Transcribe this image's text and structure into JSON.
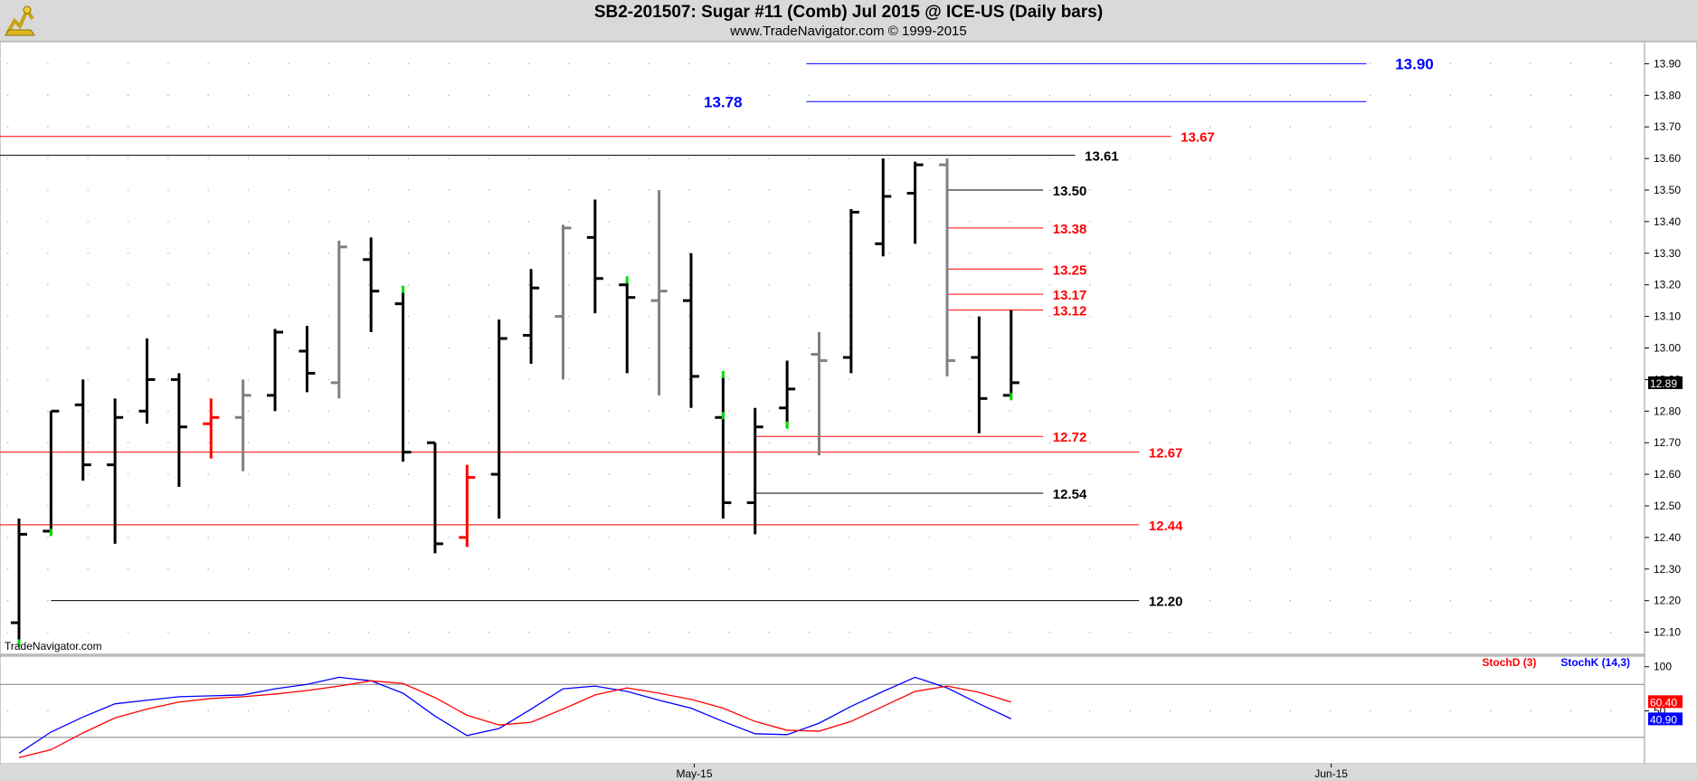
{
  "header": {
    "title": "SB2-201507:  Sugar #11 (Comb) Jul 2015 @ ICE-US  (Daily bars)",
    "subtitle": "www.TradeNavigator.com © 1999-2015"
  },
  "watermark": "TradeNavigator.com",
  "chart_data": [
    {
      "type": "ohlc",
      "ylim": [
        12.03,
        13.97
      ],
      "yticks": [
        "12.10",
        "12.20",
        "12.30",
        "12.40",
        "12.50",
        "12.60",
        "12.70",
        "12.80",
        "12.90",
        "13.00",
        "13.10",
        "13.20",
        "13.30",
        "13.40",
        "13.50",
        "13.60",
        "13.70",
        "13.80",
        "13.90"
      ],
      "x_labels": [
        {
          "label": "May-15",
          "bar": 21.1
        },
        {
          "label": "Jun-15",
          "bar": 41.0
        }
      ],
      "last_price": "12.89",
      "grid": true,
      "bars": [
        {
          "o": 12.13,
          "h": 12.46,
          "l": 12.06,
          "c": 12.41,
          "color": "black"
        },
        {
          "o": 12.42,
          "h": 12.8,
          "l": 12.41,
          "c": 12.8,
          "color": "black"
        },
        {
          "o": 12.82,
          "h": 12.9,
          "l": 12.58,
          "c": 12.63,
          "color": "black"
        },
        {
          "o": 12.63,
          "h": 12.84,
          "l": 12.38,
          "c": 12.78,
          "color": "black"
        },
        {
          "o": 12.8,
          "h": 13.03,
          "l": 12.76,
          "c": 12.9,
          "color": "black"
        },
        {
          "o": 12.9,
          "h": 12.92,
          "l": 12.56,
          "c": 12.75,
          "color": "black"
        },
        {
          "o": 12.76,
          "h": 12.84,
          "l": 12.65,
          "c": 12.78,
          "color": "red"
        },
        {
          "o": 12.78,
          "h": 12.9,
          "l": 12.61,
          "c": 12.85,
          "color": "gray"
        },
        {
          "o": 12.85,
          "h": 13.06,
          "l": 12.8,
          "c": 13.05,
          "color": "black"
        },
        {
          "o": 12.99,
          "h": 13.07,
          "l": 12.86,
          "c": 12.92,
          "color": "black"
        },
        {
          "o": 12.89,
          "h": 13.34,
          "l": 12.84,
          "c": 13.32,
          "color": "gray"
        },
        {
          "o": 13.28,
          "h": 13.35,
          "l": 13.05,
          "c": 13.18,
          "color": "black"
        },
        {
          "o": 13.14,
          "h": 13.18,
          "l": 12.64,
          "c": 12.67,
          "color": "black"
        },
        {
          "o": 12.7,
          "h": 12.7,
          "l": 12.35,
          "c": 12.38,
          "color": "black"
        },
        {
          "o": 12.4,
          "h": 12.63,
          "l": 12.37,
          "c": 12.59,
          "color": "red"
        },
        {
          "o": 12.6,
          "h": 13.09,
          "l": 12.46,
          "c": 13.03,
          "color": "black"
        },
        {
          "o": 13.04,
          "h": 13.25,
          "l": 12.95,
          "c": 13.19,
          "color": "black"
        },
        {
          "o": 13.1,
          "h": 13.39,
          "l": 12.9,
          "c": 13.38,
          "color": "gray"
        },
        {
          "o": 13.35,
          "h": 13.47,
          "l": 13.11,
          "c": 13.22,
          "color": "black"
        },
        {
          "o": 13.2,
          "h": 13.21,
          "l": 12.92,
          "c": 13.16,
          "color": "black"
        },
        {
          "o": 13.15,
          "h": 13.5,
          "l": 12.85,
          "c": 13.18,
          "color": "gray"
        },
        {
          "o": 13.15,
          "h": 13.3,
          "l": 12.81,
          "c": 12.91,
          "color": "black"
        },
        {
          "o": 12.78,
          "h": 12.91,
          "l": 12.46,
          "c": 12.51,
          "color": "black"
        },
        {
          "o": 12.51,
          "h": 12.81,
          "l": 12.41,
          "c": 12.75,
          "color": "black"
        },
        {
          "o": 12.81,
          "h": 12.96,
          "l": 12.75,
          "c": 12.87,
          "color": "black"
        },
        {
          "o": 12.98,
          "h": 13.05,
          "l": 12.66,
          "c": 12.96,
          "color": "gray"
        },
        {
          "o": 12.97,
          "h": 13.44,
          "l": 12.92,
          "c": 13.43,
          "color": "black"
        },
        {
          "o": 13.33,
          "h": 13.6,
          "l": 13.29,
          "c": 13.48,
          "color": "black"
        },
        {
          "o": 13.49,
          "h": 13.59,
          "l": 13.33,
          "c": 13.58,
          "color": "black"
        },
        {
          "o": 13.58,
          "h": 13.6,
          "l": 12.91,
          "c": 12.96,
          "color": "gray"
        },
        {
          "o": 12.97,
          "h": 13.1,
          "l": 12.73,
          "c": 12.84,
          "color": "black"
        },
        {
          "o": 12.85,
          "h": 13.12,
          "l": 12.84,
          "c": 12.89,
          "color": "black"
        }
      ],
      "green_ticks": [
        {
          "bar": 0,
          "price": 12.06
        },
        {
          "bar": 1,
          "price": 12.41
        },
        {
          "bar": 12,
          "price": 13.18
        },
        {
          "bar": 19,
          "price": 13.21
        },
        {
          "bar": 22,
          "price": 12.78
        },
        {
          "bar": 22,
          "price": 12.91
        },
        {
          "bar": 24,
          "price": 12.75
        },
        {
          "bar": 31,
          "price": 12.84
        }
      ],
      "levels": [
        {
          "label": "13.90",
          "value": 13.9,
          "from": 24.6,
          "to": 42.1,
          "color": "#0000ff",
          "label_side": "right",
          "label_bar": 43.0,
          "size": 17
        },
        {
          "label": "13.78",
          "value": 13.78,
          "from": 24.6,
          "to": 42.1,
          "color": "#0000ff",
          "label_side": "left",
          "label_bar": 22.6,
          "size": 17
        },
        {
          "label": "13.67",
          "value": 13.67,
          "from": -1.6,
          "to": 36.0,
          "color": "#ff0000",
          "label_side": "right",
          "label_bar": 36.3,
          "size": 15
        },
        {
          "label": "13.61",
          "value": 13.61,
          "from": -1.6,
          "to": 33.0,
          "color": "#000000",
          "label_side": "right",
          "label_bar": 33.3,
          "size": 15
        },
        {
          "label": "13.50",
          "value": 13.5,
          "from": 29.0,
          "to": 32.0,
          "color": "#000000",
          "label_side": "right",
          "label_bar": 32.3,
          "size": 15
        },
        {
          "label": "13.38",
          "value": 13.38,
          "from": 29.0,
          "to": 32.0,
          "color": "#ff0000",
          "label_side": "right",
          "label_bar": 32.3,
          "size": 15
        },
        {
          "label": "13.25",
          "value": 13.25,
          "from": 29.0,
          "to": 32.0,
          "color": "#ff0000",
          "label_side": "right",
          "label_bar": 32.3,
          "size": 15
        },
        {
          "label": "13.17",
          "value": 13.17,
          "from": 29.0,
          "to": 32.0,
          "color": "#ff0000",
          "label_side": "right",
          "label_bar": 32.3,
          "size": 15
        },
        {
          "label": "13.12",
          "value": 13.12,
          "from": 29.0,
          "to": 32.0,
          "color": "#ff0000",
          "label_side": "right",
          "label_bar": 32.3,
          "size": 15
        },
        {
          "label": "12.72",
          "value": 12.72,
          "from": 23.0,
          "to": 32.0,
          "color": "#ff0000",
          "label_side": "right",
          "label_bar": 32.3,
          "size": 15
        },
        {
          "label": "12.67",
          "value": 12.67,
          "from": -1.6,
          "to": 35.0,
          "color": "#ff0000",
          "label_side": "right",
          "label_bar": 35.3,
          "size": 15
        },
        {
          "label": "12.54",
          "value": 12.54,
          "from": 23.0,
          "to": 32.0,
          "color": "#000000",
          "label_side": "right",
          "label_bar": 32.3,
          "size": 15
        },
        {
          "label": "12.44",
          "value": 12.44,
          "from": -1.6,
          "to": 35.0,
          "color": "#ff0000",
          "label_side": "right",
          "label_bar": 35.3,
          "size": 15
        },
        {
          "label": "12.20",
          "value": 12.2,
          "from": 1.0,
          "to": 35.0,
          "color": "#000000",
          "label_side": "right",
          "label_bar": 35.3,
          "size": 15
        }
      ]
    },
    {
      "type": "line",
      "ylim": [
        -10,
        112
      ],
      "yticks": [
        "100",
        "50"
      ],
      "hlines": [
        80,
        20
      ],
      "legend": [
        {
          "name": "StochD (3)",
          "color": "#ff0000"
        },
        {
          "name": "StochK (14,3)",
          "color": "#0000ff"
        }
      ],
      "last_values": [
        {
          "label": "60.40",
          "color": "#ff0000",
          "value": 60.4
        },
        {
          "label": "40.90",
          "color": "#0000ff",
          "value": 40.9
        }
      ],
      "series": [
        {
          "name": "StochK (14,3)",
          "color": "#0000ff",
          "x": [
            0,
            1,
            2,
            3,
            4,
            5,
            6,
            7,
            8,
            9,
            10,
            11,
            12,
            13,
            14,
            15,
            16,
            17,
            18,
            19,
            20,
            21,
            22,
            23,
            24,
            25,
            26,
            27,
            28,
            29,
            30,
            31
          ],
          "values": [
            2,
            26,
            43,
            58,
            62,
            66,
            67,
            68,
            75,
            80,
            88,
            84,
            70,
            44,
            22,
            30,
            52,
            75,
            78,
            72,
            62,
            53,
            38,
            24,
            23,
            36,
            55,
            72,
            88,
            76,
            58,
            41
          ]
        },
        {
          "name": "StochD (3)",
          "color": "#ff0000",
          "x": [
            0,
            1,
            2,
            3,
            4,
            5,
            6,
            7,
            8,
            9,
            10,
            11,
            12,
            13,
            14,
            15,
            16,
            17,
            18,
            19,
            20,
            21,
            22,
            23,
            24,
            25,
            26,
            27,
            28,
            29,
            30,
            31
          ],
          "values": [
            -3,
            6,
            25,
            42,
            52,
            60,
            64,
            66,
            69,
            73,
            78,
            84,
            81,
            65,
            45,
            34,
            37,
            52,
            68,
            76,
            70,
            63,
            53,
            38,
            28,
            27,
            38,
            55,
            72,
            78,
            71,
            60
          ]
        }
      ]
    }
  ]
}
